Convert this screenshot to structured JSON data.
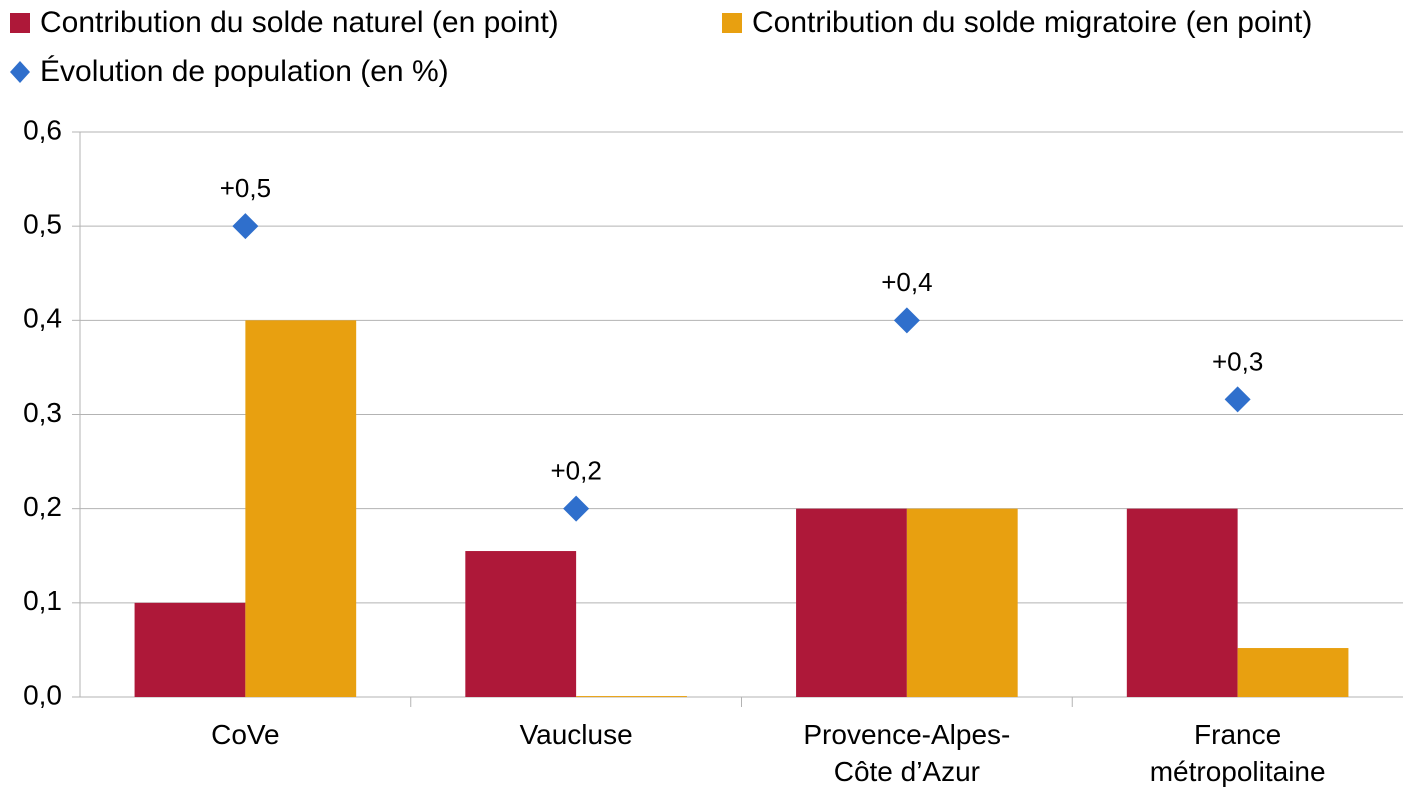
{
  "chart_data": {
    "type": "bar",
    "categories": [
      [
        "CoVe"
      ],
      [
        "Vaucluse"
      ],
      [
        "Provence-Alpes-",
        "Côte d’Azur"
      ],
      [
        "France",
        "métropolitaine"
      ]
    ],
    "series": [
      {
        "name": "Contribution du solde naturel (en point)",
        "color": "#ae1839",
        "values": [
          0.1,
          0.155,
          0.2,
          0.2
        ]
      },
      {
        "name": "Contribution du solde migratoire (en point)",
        "color": "#e8a010",
        "values": [
          0.4,
          0.001,
          0.2,
          0.052
        ]
      },
      {
        "name": "Évolution de population (en %)",
        "type": "scatter",
        "color": "#2f6fcc",
        "values": [
          0.5,
          0.2,
          0.4,
          0.316
        ],
        "value_labels": [
          "+0,5",
          "+0,2",
          "+0,4",
          "+0,3"
        ]
      }
    ],
    "ylim": [
      0,
      0.6
    ],
    "yticks": [
      {
        "value": 0,
        "label": "0,0"
      },
      {
        "value": 0.1,
        "label": "0,1"
      },
      {
        "value": 0.2,
        "label": "0,2"
      },
      {
        "value": 0.3,
        "label": "0,3"
      },
      {
        "value": 0.4,
        "label": "0,4"
      },
      {
        "value": 0.5,
        "label": "0,5"
      },
      {
        "value": 0.6,
        "label": "0,6"
      }
    ],
    "grid": true
  }
}
